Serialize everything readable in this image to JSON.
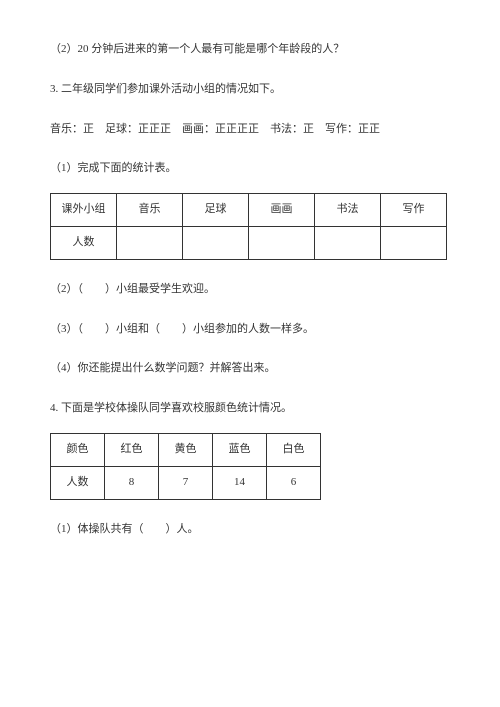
{
  "q2_2": "（2）20 分钟后进来的第一个人最有可能是哪个年龄段的人？",
  "q3_intro": "3. 二年级同学们参加课外活动小组的情况如下。",
  "q3_tally": "音乐：正 足球：正正正 画画：正正正正 书法：正 写作：正正",
  "q3_1": "（1）完成下面的统计表。",
  "table1": {
    "headers": [
      "课外小组",
      "音乐",
      "足球",
      "画画",
      "书法",
      "写作"
    ],
    "row_label": "人数"
  },
  "q3_2": "（2）（  ）小组最受学生欢迎。",
  "q3_3": "（3）（  ）小组和（  ）小组参加的人数一样多。",
  "q3_4": "（4）你还能提出什么数学问题？并解答出来。",
  "q4_intro": "4. 下面是学校体操队同学喜欢校服颜色统计情况。",
  "table2": {
    "headers": [
      "颜色",
      "红色",
      "黄色",
      "蓝色",
      "白色"
    ],
    "row_label": "人数",
    "values": [
      "8",
      "7",
      "14",
      "6"
    ]
  },
  "q4_1": "（1）体操队共有（  ）人。"
}
